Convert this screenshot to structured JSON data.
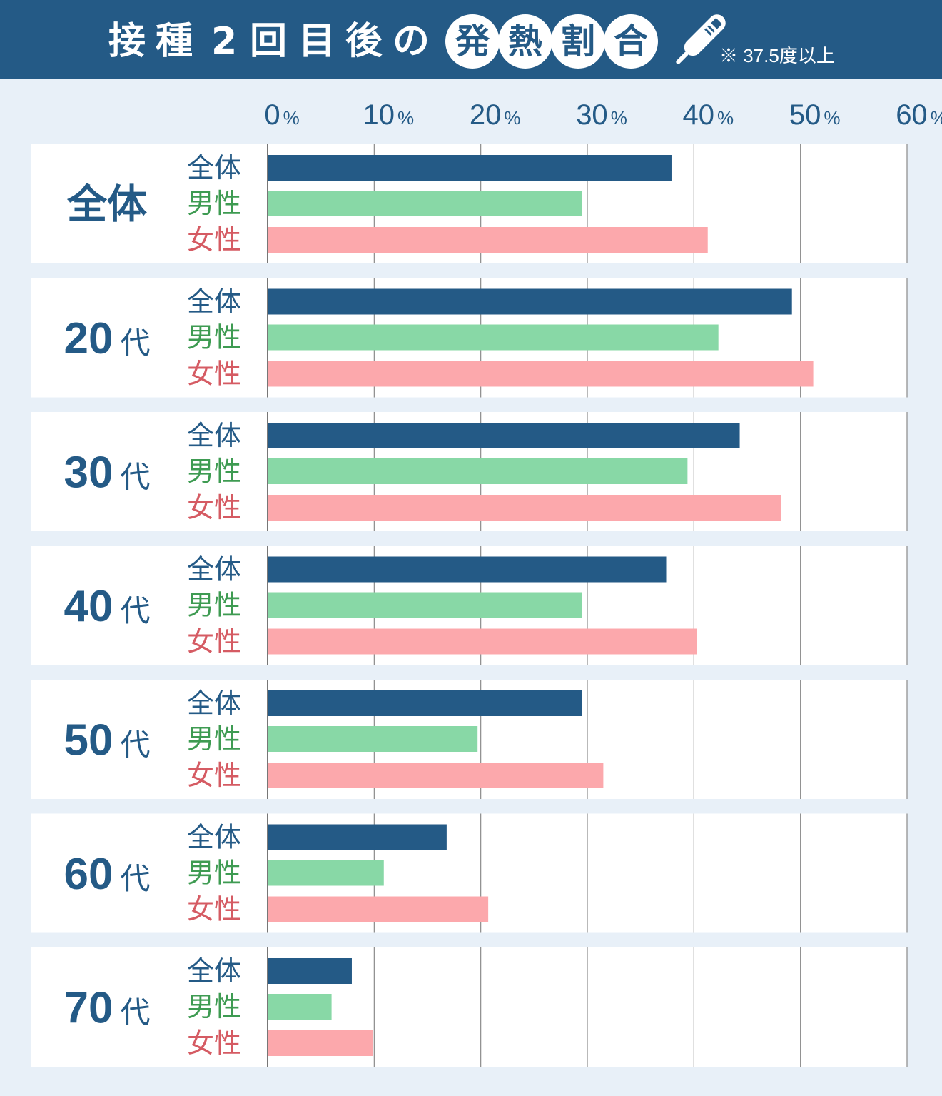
{
  "header": {
    "title_plain": [
      "接",
      "種",
      "2",
      "回",
      "目",
      "後",
      "の"
    ],
    "title_circled": [
      "発",
      "熱",
      "割",
      "合"
    ],
    "note": "※ 37.5度以上",
    "thermometer_icon": "thermometer-icon"
  },
  "colors": {
    "header_bg": "#245a86",
    "page_bg": "#e8f0f8",
    "total": "#245a86",
    "male": "#88d8a6",
    "female": "#fca8ac",
    "male_text": "#3e9b52",
    "female_text": "#d55b63"
  },
  "chart_data": {
    "type": "bar",
    "orientation": "horizontal",
    "xlim": [
      0,
      60
    ],
    "xticks": [
      {
        "num": "0",
        "unit": "%"
      },
      {
        "num": "10",
        "unit": "%"
      },
      {
        "num": "20",
        "unit": "%"
      },
      {
        "num": "30",
        "unit": "%"
      },
      {
        "num": "40",
        "unit": "%"
      },
      {
        "num": "50",
        "unit": "%"
      },
      {
        "num": "60",
        "unit": "%"
      }
    ],
    "grid": true,
    "series_labels": [
      "全体",
      "男性",
      "女性"
    ],
    "groups": [
      {
        "label": "全体",
        "num": "",
        "suffix": "",
        "values": [
          37.9,
          29.5,
          41.3
        ]
      },
      {
        "label": "",
        "num": "20",
        "suffix": "代",
        "values": [
          49.2,
          42.3,
          51.2
        ]
      },
      {
        "label": "",
        "num": "30",
        "suffix": "代",
        "values": [
          44.3,
          39.4,
          48.2
        ]
      },
      {
        "label": "",
        "num": "40",
        "suffix": "代",
        "values": [
          37.4,
          29.5,
          40.3
        ]
      },
      {
        "label": "",
        "num": "50",
        "suffix": "代",
        "values": [
          29.5,
          19.7,
          31.5
        ]
      },
      {
        "label": "",
        "num": "60",
        "suffix": "代",
        "values": [
          16.8,
          10.9,
          20.7
        ]
      },
      {
        "label": "",
        "num": "70",
        "suffix": "代",
        "values": [
          7.9,
          6.0,
          9.9
        ]
      }
    ]
  }
}
